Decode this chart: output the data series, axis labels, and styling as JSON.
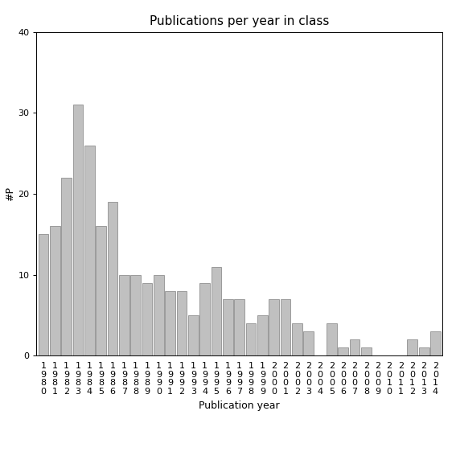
{
  "title": "Publications per year in class",
  "xlabel": "Publication year",
  "ylabel": "#P",
  "ylim": [
    0,
    40
  ],
  "yticks": [
    0,
    10,
    20,
    30,
    40
  ],
  "bar_color": "#c0c0c0",
  "bar_edge_color": "#808080",
  "categories": [
    "1980",
    "1981",
    "1982",
    "1983",
    "1984",
    "1985",
    "1986",
    "1987",
    "1988",
    "1989",
    "1990",
    "1991",
    "1992",
    "1993",
    "1994",
    "1995",
    "1996",
    "1997",
    "1998",
    "1999",
    "2000",
    "2001",
    "2002",
    "2003",
    "2004",
    "2005",
    "2006",
    "2007",
    "2008",
    "2009",
    "2010",
    "2011",
    "2012",
    "2013",
    "2014"
  ],
  "values": [
    15,
    16,
    22,
    31,
    26,
    16,
    19,
    10,
    10,
    9,
    10,
    8,
    8,
    5,
    9,
    11,
    7,
    7,
    4,
    5,
    7,
    7,
    4,
    3,
    0,
    4,
    1,
    2,
    1,
    0,
    0,
    0,
    2,
    1,
    3
  ],
  "background_color": "#ffffff",
  "title_fontsize": 11,
  "label_fontsize": 9,
  "tick_fontsize": 8
}
